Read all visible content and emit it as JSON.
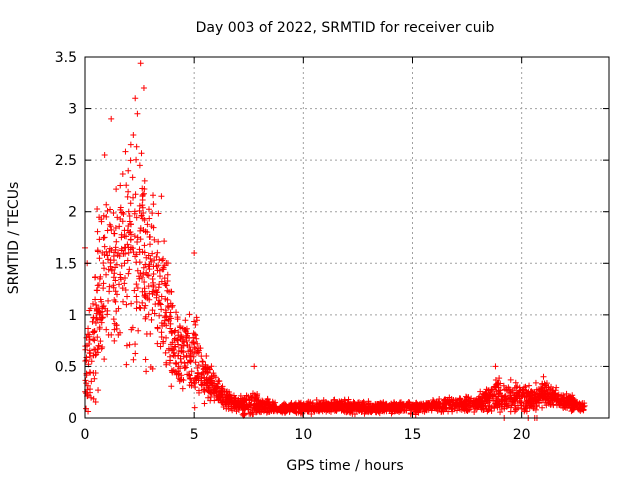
{
  "chart_data": {
    "type": "scatter",
    "title": "Day 003 of 2022, SRMTID for receiver cuib",
    "xlabel": "GPS time / hours",
    "ylabel": "SRMTID / TECUs",
    "xlim": [
      0,
      24
    ],
    "ylim": [
      0,
      3.5
    ],
    "xticks": [
      0,
      5,
      10,
      15,
      20
    ],
    "xtick_labels": [
      "0",
      "5",
      "10",
      "15",
      "20"
    ],
    "yticks": [
      0,
      0.5,
      1,
      1.5,
      2,
      2.5,
      3,
      3.5
    ],
    "ytick_labels": [
      "0",
      "0.5",
      "1",
      "1.5",
      "2",
      "2.5",
      "3",
      "3.5"
    ],
    "grid": true,
    "marker": "+",
    "marker_color": "#ff0000",
    "envelope": {
      "x": [
        0.0,
        0.3,
        0.6,
        1.0,
        1.5,
        2.0,
        2.5,
        3.0,
        3.5,
        4.0,
        4.5,
        5.0,
        5.5,
        6.0,
        6.5,
        7.0,
        7.5,
        8.0,
        9.0,
        10.0,
        11.0,
        12.0,
        13.0,
        14.0,
        15.0,
        16.0,
        17.0,
        18.0,
        18.8,
        19.5,
        20.0,
        20.5,
        21.0,
        21.5,
        22.0,
        22.5,
        22.9
      ],
      "mean": [
        0.4,
        0.7,
        1.1,
        1.4,
        1.4,
        1.6,
        1.7,
        1.4,
        1.2,
        0.75,
        0.6,
        0.6,
        0.4,
        0.25,
        0.18,
        0.13,
        0.12,
        0.12,
        0.09,
        0.1,
        0.11,
        0.11,
        0.1,
        0.1,
        0.1,
        0.12,
        0.13,
        0.15,
        0.22,
        0.2,
        0.2,
        0.18,
        0.25,
        0.2,
        0.15,
        0.13,
        0.1
      ],
      "spread": [
        0.35,
        0.6,
        0.8,
        0.9,
        0.8,
        0.9,
        0.9,
        0.8,
        0.6,
        0.4,
        0.35,
        0.4,
        0.2,
        0.12,
        0.08,
        0.06,
        0.12,
        0.07,
        0.04,
        0.05,
        0.05,
        0.05,
        0.05,
        0.04,
        0.05,
        0.05,
        0.06,
        0.07,
        0.15,
        0.1,
        0.12,
        0.1,
        0.12,
        0.1,
        0.07,
        0.06,
        0.04
      ],
      "n_points": 2600
    },
    "highlights": [
      {
        "x": 2.55,
        "y": 3.44
      },
      {
        "x": 2.3,
        "y": 3.1
      },
      {
        "x": 2.7,
        "y": 3.2
      },
      {
        "x": 2.4,
        "y": 2.95
      },
      {
        "x": 1.2,
        "y": 2.9
      },
      {
        "x": 0.9,
        "y": 2.55
      },
      {
        "x": 2.1,
        "y": 2.65
      },
      {
        "x": 0.0,
        "y": 1.65
      },
      {
        "x": 0.1,
        "y": 1.5
      },
      {
        "x": 3.5,
        "y": 2.15
      },
      {
        "x": 5.0,
        "y": 1.6
      },
      {
        "x": 7.75,
        "y": 0.5
      },
      {
        "x": 18.8,
        "y": 0.5
      },
      {
        "x": 19.5,
        "y": 0.37
      },
      {
        "x": 21.0,
        "y": 0.4
      },
      {
        "x": 19.2,
        "y": 0.0
      },
      {
        "x": 20.3,
        "y": 0.0
      },
      {
        "x": 20.6,
        "y": 0.0
      },
      {
        "x": 20.7,
        "y": 0.0
      }
    ]
  }
}
